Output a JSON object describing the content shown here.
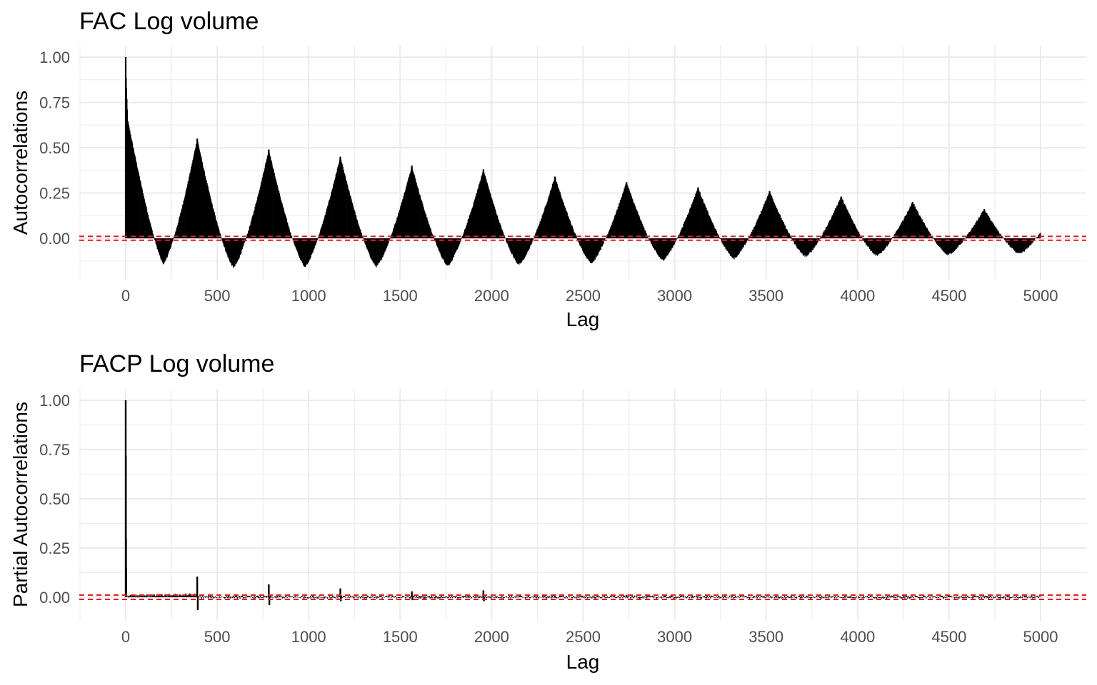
{
  "chart_data": [
    {
      "type": "bar",
      "title": "FAC Log volume",
      "xlabel": "Lag",
      "ylabel": "Autocorrelations",
      "xlim": [
        0,
        5000
      ],
      "ylim": [
        -0.17,
        1.0
      ],
      "x_ticks": [
        "0",
        "500",
        "1000",
        "1500",
        "2000",
        "2500",
        "3000",
        "3500",
        "4000",
        "4500",
        "5000"
      ],
      "y_ticks": [
        "0.00",
        "0.25",
        "0.50",
        "0.75",
        "1.00"
      ],
      "bar_color": "#000000",
      "confidence_band": {
        "upper": 0.0108,
        "lower": -0.0108,
        "color": "#e41a1c",
        "style": "dashed"
      },
      "grid": true,
      "peaks": [
        {
          "lag": 0,
          "value": 1.0
        },
        {
          "lag": 391,
          "value": 0.55
        },
        {
          "lag": 782,
          "value": 0.49
        },
        {
          "lag": 1173,
          "value": 0.45
        },
        {
          "lag": 1564,
          "value": 0.4
        },
        {
          "lag": 1955,
          "value": 0.38
        },
        {
          "lag": 2346,
          "value": 0.34
        },
        {
          "lag": 2737,
          "value": 0.31
        },
        {
          "lag": 3128,
          "value": 0.28
        },
        {
          "lag": 3519,
          "value": 0.26
        },
        {
          "lag": 3910,
          "value": 0.23
        },
        {
          "lag": 4301,
          "value": 0.2
        },
        {
          "lag": 4692,
          "value": 0.16
        }
      ],
      "troughs": [
        {
          "lag": 205,
          "value": -0.14
        },
        {
          "lag": 590,
          "value": -0.16
        },
        {
          "lag": 980,
          "value": -0.155
        },
        {
          "lag": 1370,
          "value": -0.155
        },
        {
          "lag": 1760,
          "value": -0.15
        },
        {
          "lag": 2150,
          "value": -0.145
        },
        {
          "lag": 2545,
          "value": -0.135
        },
        {
          "lag": 2935,
          "value": -0.12
        },
        {
          "lag": 3325,
          "value": -0.11
        },
        {
          "lag": 3715,
          "value": -0.1
        },
        {
          "lag": 4105,
          "value": -0.095
        },
        {
          "lag": 4495,
          "value": -0.09
        },
        {
          "lag": 4885,
          "value": -0.085
        }
      ],
      "end": {
        "lag": 5000,
        "value": 0.035
      }
    },
    {
      "type": "bar",
      "title": "FACP Log volume",
      "xlabel": "Lag",
      "ylabel": "Partial Autocorrelations",
      "xlim": [
        0,
        5000
      ],
      "ylim": [
        -0.1,
        1.0
      ],
      "x_ticks": [
        "0",
        "500",
        "1000",
        "1500",
        "2000",
        "2500",
        "3000",
        "3500",
        "4000",
        "4500",
        "5000"
      ],
      "y_ticks": [
        "0.00",
        "0.25",
        "0.50",
        "0.75",
        "1.00"
      ],
      "bar_color": "#000000",
      "confidence_band": {
        "upper": 0.0108,
        "lower": -0.0108,
        "color": "#e41a1c",
        "style": "dashed"
      },
      "grid": true,
      "spikes": [
        {
          "lag": 0,
          "value": 1.0
        },
        {
          "lag": 1,
          "value": 0.72
        },
        {
          "lag": 2,
          "value": 0.3
        },
        {
          "lag": 3,
          "value": 0.15
        },
        {
          "lag": 391,
          "value": 0.105
        },
        {
          "lag": 394,
          "value": -0.065
        },
        {
          "lag": 782,
          "value": 0.065
        },
        {
          "lag": 785,
          "value": -0.04
        },
        {
          "lag": 1173,
          "value": 0.045
        },
        {
          "lag": 1176,
          "value": -0.02
        },
        {
          "lag": 1564,
          "value": 0.03
        },
        {
          "lag": 1567,
          "value": -0.015
        },
        {
          "lag": 1955,
          "value": 0.035
        },
        {
          "lag": 1958,
          "value": -0.02
        },
        {
          "lag": 2346,
          "value": 0.015
        },
        {
          "lag": 2737,
          "value": 0.012
        }
      ],
      "noise_amplitude": 0.008
    }
  ]
}
